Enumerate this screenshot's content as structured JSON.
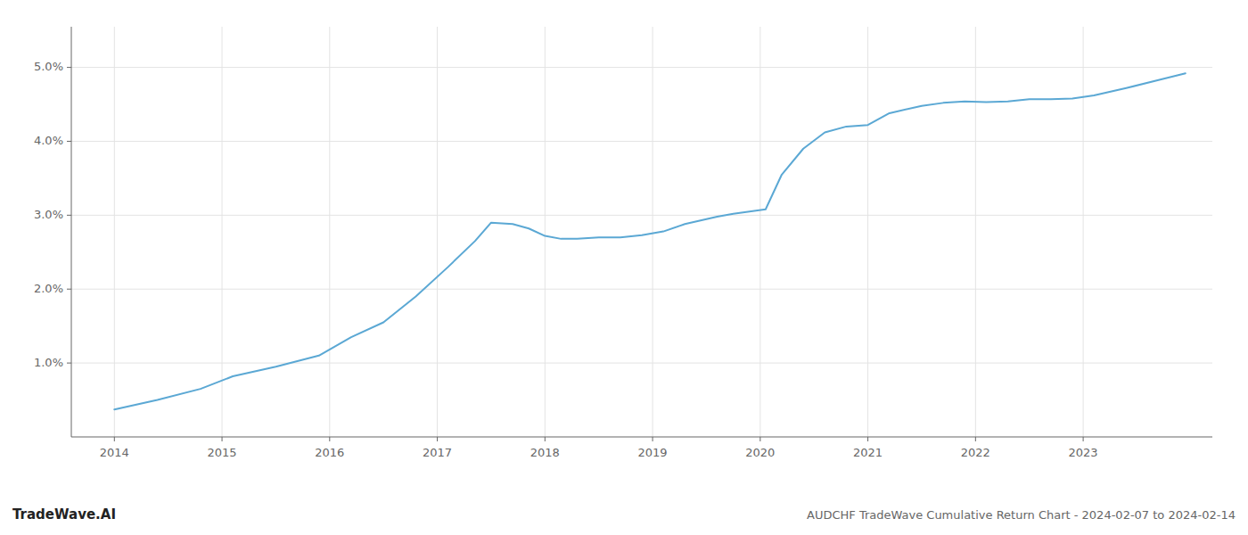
{
  "chart_data": {
    "type": "line",
    "title": "AUDCHF TradeWave Cumulative Return Chart - 2024-02-07 to 2024-02-14",
    "annotations": [
      "TradeWave.AI"
    ],
    "x": [
      2014.0,
      2014.4,
      2014.8,
      2015.1,
      2015.5,
      2015.9,
      2016.2,
      2016.5,
      2016.8,
      2017.1,
      2017.35,
      2017.5,
      2017.7,
      2017.85,
      2018.0,
      2018.15,
      2018.3,
      2018.5,
      2018.7,
      2018.9,
      2019.1,
      2019.3,
      2019.6,
      2019.75,
      2019.9,
      2020.05,
      2020.2,
      2020.4,
      2020.6,
      2020.8,
      2021.0,
      2021.2,
      2021.5,
      2021.7,
      2021.9,
      2022.1,
      2022.3,
      2022.5,
      2022.7,
      2022.9,
      2023.1,
      2023.4,
      2023.7,
      2023.95
    ],
    "values": [
      0.37,
      0.5,
      0.65,
      0.82,
      0.95,
      1.1,
      1.35,
      1.55,
      1.9,
      2.3,
      2.65,
      2.9,
      2.88,
      2.82,
      2.72,
      2.68,
      2.68,
      2.7,
      2.7,
      2.73,
      2.78,
      2.88,
      2.98,
      3.02,
      3.05,
      3.08,
      3.55,
      3.9,
      4.12,
      4.2,
      4.22,
      4.38,
      4.48,
      4.52,
      4.54,
      4.53,
      4.54,
      4.57,
      4.57,
      4.58,
      4.62,
      4.72,
      4.83,
      4.92
    ],
    "color": "#5ba8d4",
    "xlim": [
      2013.6,
      2024.2
    ],
    "ylim": [
      0.0,
      5.55
    ],
    "xticks": [
      2014,
      2015,
      2016,
      2017,
      2018,
      2019,
      2020,
      2021,
      2022,
      2023
    ],
    "yticks": [
      {
        "value": 1.0,
        "label": "1.0%"
      },
      {
        "value": 2.0,
        "label": "2.0%"
      },
      {
        "value": 3.0,
        "label": "3.0%"
      },
      {
        "value": 4.0,
        "label": "4.0%"
      },
      {
        "value": 5.0,
        "label": "5.0%"
      }
    ],
    "grid": true
  }
}
